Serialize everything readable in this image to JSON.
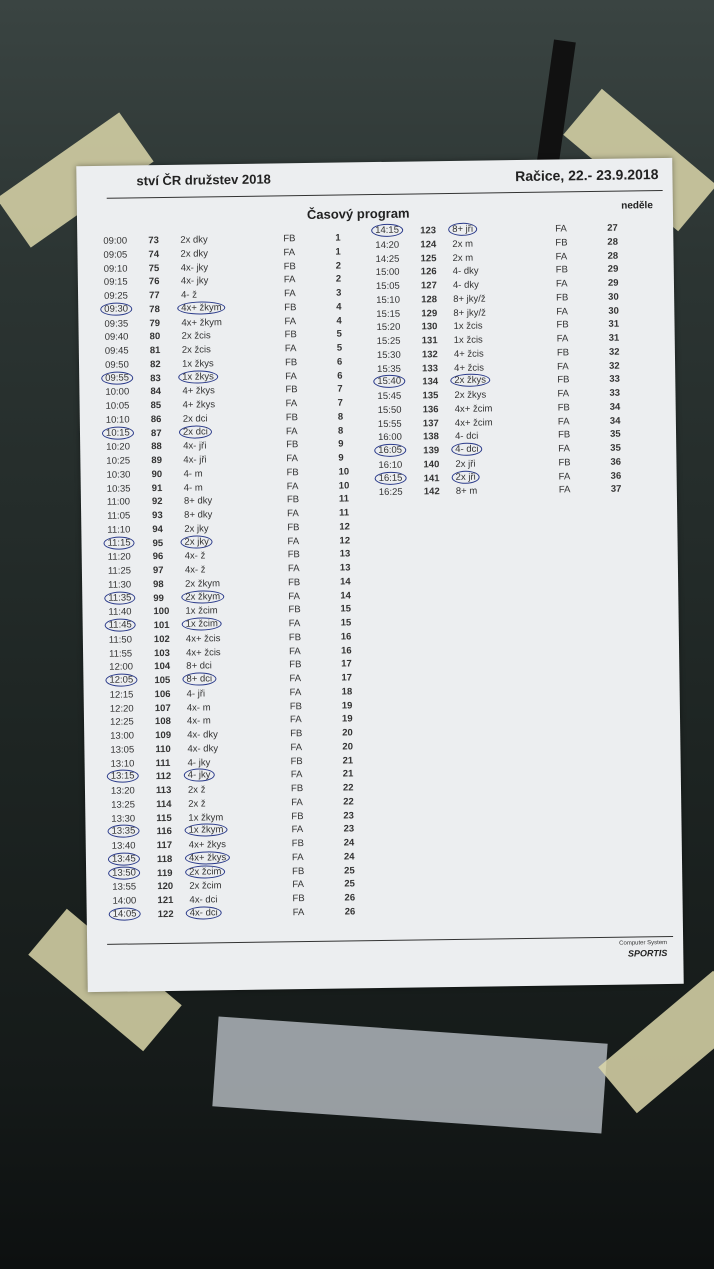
{
  "header": {
    "left": "ství ČR družstev 2018",
    "right": "Račice,  22.- 23.9.2018"
  },
  "title": "Časový program",
  "day": "neděle",
  "footer": {
    "line1": "Computer System",
    "line2": "SPORTIS"
  },
  "left_rows": [
    {
      "time": "09:00",
      "no": "73",
      "event": "2x dky",
      "lane": "FB",
      "race": "1"
    },
    {
      "time": "09:05",
      "no": "74",
      "event": "2x dky",
      "lane": "FA",
      "race": "1"
    },
    {
      "time": "09:10",
      "no": "75",
      "event": "4x- jky",
      "lane": "FB",
      "race": "2"
    },
    {
      "time": "09:15",
      "no": "76",
      "event": "4x- jky",
      "lane": "FA",
      "race": "2"
    },
    {
      "time": "09:25",
      "no": "77",
      "event": "4- ž",
      "lane": "FA",
      "race": "3"
    },
    {
      "time": "09:30",
      "no": "78",
      "event": "4x+ žkym",
      "lane": "FB",
      "race": "4",
      "circled": true
    },
    {
      "time": "09:35",
      "no": "79",
      "event": "4x+ žkym",
      "lane": "FA",
      "race": "4"
    },
    {
      "time": "09:40",
      "no": "80",
      "event": "2x žcis",
      "lane": "FB",
      "race": "5"
    },
    {
      "time": "09:45",
      "no": "81",
      "event": "2x žcis",
      "lane": "FA",
      "race": "5"
    },
    {
      "time": "09:50",
      "no": "82",
      "event": "1x žkys",
      "lane": "FB",
      "race": "6"
    },
    {
      "time": "09:55",
      "no": "83",
      "event": "1x žkys",
      "lane": "FA",
      "race": "6",
      "circled": true
    },
    {
      "time": "10:00",
      "no": "84",
      "event": "4+ žkys",
      "lane": "FB",
      "race": "7"
    },
    {
      "time": "10:05",
      "no": "85",
      "event": "4+ žkys",
      "lane": "FA",
      "race": "7"
    },
    {
      "time": "10:10",
      "no": "86",
      "event": "2x dci",
      "lane": "FB",
      "race": "8"
    },
    {
      "time": "10:15",
      "no": "87",
      "event": "2x dci",
      "lane": "FA",
      "race": "8",
      "circled": true
    },
    {
      "time": "10:20",
      "no": "88",
      "event": "4x- jři",
      "lane": "FB",
      "race": "9"
    },
    {
      "time": "10:25",
      "no": "89",
      "event": "4x- jři",
      "lane": "FA",
      "race": "9"
    },
    {
      "time": "10:30",
      "no": "90",
      "event": "4- m",
      "lane": "FB",
      "race": "10"
    },
    {
      "time": "10:35",
      "no": "91",
      "event": "4- m",
      "lane": "FA",
      "race": "10"
    },
    {
      "time": "11:00",
      "no": "92",
      "event": "8+ dky",
      "lane": "FB",
      "race": "11"
    },
    {
      "time": "11:05",
      "no": "93",
      "event": "8+ dky",
      "lane": "FA",
      "race": "11"
    },
    {
      "time": "11:10",
      "no": "94",
      "event": "2x jky",
      "lane": "FB",
      "race": "12"
    },
    {
      "time": "11:15",
      "no": "95",
      "event": "2x jky",
      "lane": "FA",
      "race": "12",
      "circled": true
    },
    {
      "time": "11:20",
      "no": "96",
      "event": "4x- ž",
      "lane": "FB",
      "race": "13"
    },
    {
      "time": "11:25",
      "no": "97",
      "event": "4x- ž",
      "lane": "FA",
      "race": "13"
    },
    {
      "time": "11:30",
      "no": "98",
      "event": "2x žkym",
      "lane": "FB",
      "race": "14"
    },
    {
      "time": "11:35",
      "no": "99",
      "event": "2x žkym",
      "lane": "FA",
      "race": "14",
      "circled": true
    },
    {
      "time": "11:40",
      "no": "100",
      "event": "1x žcim",
      "lane": "FB",
      "race": "15"
    },
    {
      "time": "11:45",
      "no": "101",
      "event": "1x žcim",
      "lane": "FA",
      "race": "15",
      "circled": true
    },
    {
      "time": "11:50",
      "no": "102",
      "event": "4x+ žcis",
      "lane": "FB",
      "race": "16"
    },
    {
      "time": "11:55",
      "no": "103",
      "event": "4x+ žcis",
      "lane": "FA",
      "race": "16"
    },
    {
      "time": "12:00",
      "no": "104",
      "event": "8+ dci",
      "lane": "FB",
      "race": "17"
    },
    {
      "time": "12:05",
      "no": "105",
      "event": "8+ dci",
      "lane": "FA",
      "race": "17",
      "circled": true
    },
    {
      "time": "12:15",
      "no": "106",
      "event": "4- jři",
      "lane": "FA",
      "race": "18"
    },
    {
      "time": "12:20",
      "no": "107",
      "event": "4x- m",
      "lane": "FB",
      "race": "19"
    },
    {
      "time": "12:25",
      "no": "108",
      "event": "4x- m",
      "lane": "FA",
      "race": "19"
    },
    {
      "time": "13:00",
      "no": "109",
      "event": "4x- dky",
      "lane": "FB",
      "race": "20"
    },
    {
      "time": "13:05",
      "no": "110",
      "event": "4x- dky",
      "lane": "FA",
      "race": "20"
    },
    {
      "time": "13:10",
      "no": "111",
      "event": "4- jky",
      "lane": "FB",
      "race": "21"
    },
    {
      "time": "13:15",
      "no": "112",
      "event": "4- jky",
      "lane": "FA",
      "race": "21",
      "circled": true
    },
    {
      "time": "13:20",
      "no": "113",
      "event": "2x ž",
      "lane": "FB",
      "race": "22"
    },
    {
      "time": "13:25",
      "no": "114",
      "event": "2x ž",
      "lane": "FA",
      "race": "22"
    },
    {
      "time": "13:30",
      "no": "115",
      "event": "1x žkym",
      "lane": "FB",
      "race": "23"
    },
    {
      "time": "13:35",
      "no": "116",
      "event": "1x žkym",
      "lane": "FA",
      "race": "23",
      "circled": true
    },
    {
      "time": "13:40",
      "no": "117",
      "event": "4x+ žkys",
      "lane": "FB",
      "race": "24"
    },
    {
      "time": "13:45",
      "no": "118",
      "event": "4x+ žkys",
      "lane": "FA",
      "race": "24",
      "circled": true
    },
    {
      "time": "13:50",
      "no": "119",
      "event": "2x žcim",
      "lane": "FB",
      "race": "25",
      "circled": true
    },
    {
      "time": "13:55",
      "no": "120",
      "event": "2x žcim",
      "lane": "FA",
      "race": "25"
    },
    {
      "time": "14:00",
      "no": "121",
      "event": "4x- dci",
      "lane": "FB",
      "race": "26"
    },
    {
      "time": "14:05",
      "no": "122",
      "event": "4x- dci",
      "lane": "FA",
      "race": "26",
      "circled": true
    }
  ],
  "right_rows": [
    {
      "time": "14:15",
      "no": "123",
      "event": "8+ jři",
      "lane": "FA",
      "race": "27",
      "circled": true
    },
    {
      "time": "14:20",
      "no": "124",
      "event": "2x m",
      "lane": "FB",
      "race": "28"
    },
    {
      "time": "14:25",
      "no": "125",
      "event": "2x m",
      "lane": "FA",
      "race": "28"
    },
    {
      "time": "15:00",
      "no": "126",
      "event": "4- dky",
      "lane": "FB",
      "race": "29"
    },
    {
      "time": "15:05",
      "no": "127",
      "event": "4- dky",
      "lane": "FA",
      "race": "29"
    },
    {
      "time": "15:10",
      "no": "128",
      "event": "8+ jky/ž",
      "lane": "FB",
      "race": "30"
    },
    {
      "time": "15:15",
      "no": "129",
      "event": "8+ jky/ž",
      "lane": "FA",
      "race": "30"
    },
    {
      "time": "15:20",
      "no": "130",
      "event": "1x žcis",
      "lane": "FB",
      "race": "31"
    },
    {
      "time": "15:25",
      "no": "131",
      "event": "1x žcis",
      "lane": "FA",
      "race": "31"
    },
    {
      "time": "15:30",
      "no": "132",
      "event": "4+ žcis",
      "lane": "FB",
      "race": "32"
    },
    {
      "time": "15:35",
      "no": "133",
      "event": "4+ žcis",
      "lane": "FA",
      "race": "32"
    },
    {
      "time": "15:40",
      "no": "134",
      "event": "2x žkys",
      "lane": "FB",
      "race": "33",
      "circled": true
    },
    {
      "time": "15:45",
      "no": "135",
      "event": "2x žkys",
      "lane": "FA",
      "race": "33"
    },
    {
      "time": "15:50",
      "no": "136",
      "event": "4x+ žcim",
      "lane": "FB",
      "race": "34"
    },
    {
      "time": "15:55",
      "no": "137",
      "event": "4x+ žcim",
      "lane": "FA",
      "race": "34"
    },
    {
      "time": "16:00",
      "no": "138",
      "event": "4- dci",
      "lane": "FB",
      "race": "35"
    },
    {
      "time": "16:05",
      "no": "139",
      "event": "4- dci",
      "lane": "FA",
      "race": "35",
      "circled": true
    },
    {
      "time": "16:10",
      "no": "140",
      "event": "2x jři",
      "lane": "FB",
      "race": "36"
    },
    {
      "time": "16:15",
      "no": "141",
      "event": "2x jři",
      "lane": "FA",
      "race": "36",
      "circled": true
    },
    {
      "time": "16:25",
      "no": "142",
      "event": "8+ m",
      "lane": "FA",
      "race": "37"
    }
  ]
}
